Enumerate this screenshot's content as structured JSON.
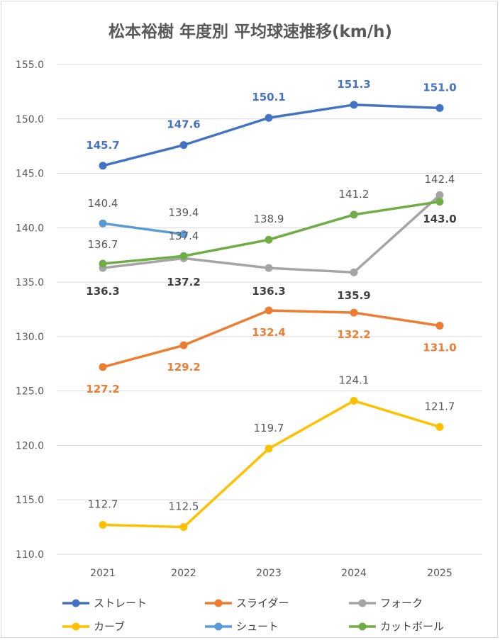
{
  "chart_data": {
    "type": "line",
    "title": "松本裕樹 年度別 平均球速推移(km/h)",
    "categories": [
      "2021",
      "2022",
      "2023",
      "2024",
      "2025"
    ],
    "y_ticks": [
      "110.0",
      "115.0",
      "120.0",
      "125.0",
      "130.0",
      "135.0",
      "140.0",
      "145.0",
      "150.0",
      "155.0"
    ],
    "ylim": [
      110,
      155
    ],
    "grid": true,
    "legend_position": "bottom",
    "series": [
      {
        "name": "ストレート",
        "color": "#4472C4",
        "values": [
          145.7,
          147.6,
          150.1,
          151.3,
          151.0
        ],
        "labels": [
          "145.7",
          "147.6",
          "150.1",
          "151.3",
          "151.0"
        ]
      },
      {
        "name": "スライダー",
        "color": "#ED7D31",
        "values": [
          127.2,
          129.2,
          132.4,
          132.2,
          131.0
        ],
        "labels": [
          "127.2",
          "129.2",
          "132.4",
          "132.2",
          "131.0"
        ]
      },
      {
        "name": "フォーク",
        "color": "#A5A5A5",
        "values": [
          136.3,
          137.2,
          136.3,
          135.9,
          143.0
        ],
        "labels": [
          "136.3",
          "137.2",
          "136.3",
          "135.9",
          "143.0"
        ]
      },
      {
        "name": "カーブ",
        "color": "#FFC000",
        "values": [
          112.7,
          112.5,
          119.7,
          124.1,
          121.7
        ],
        "labels": [
          "112.7",
          "112.5",
          "119.7",
          "124.1",
          "121.7"
        ]
      },
      {
        "name": "シュート",
        "color": "#5B9BD5",
        "values": [
          140.4,
          139.4,
          null,
          null,
          null
        ],
        "labels": [
          "140.4",
          "139.4",
          null,
          null,
          null
        ]
      },
      {
        "name": "カットボール",
        "color": "#70AD47",
        "values": [
          136.7,
          137.4,
          138.9,
          141.2,
          142.4
        ],
        "labels": [
          "136.7",
          "137.4",
          "138.9",
          "141.2",
          "142.4"
        ]
      }
    ]
  }
}
